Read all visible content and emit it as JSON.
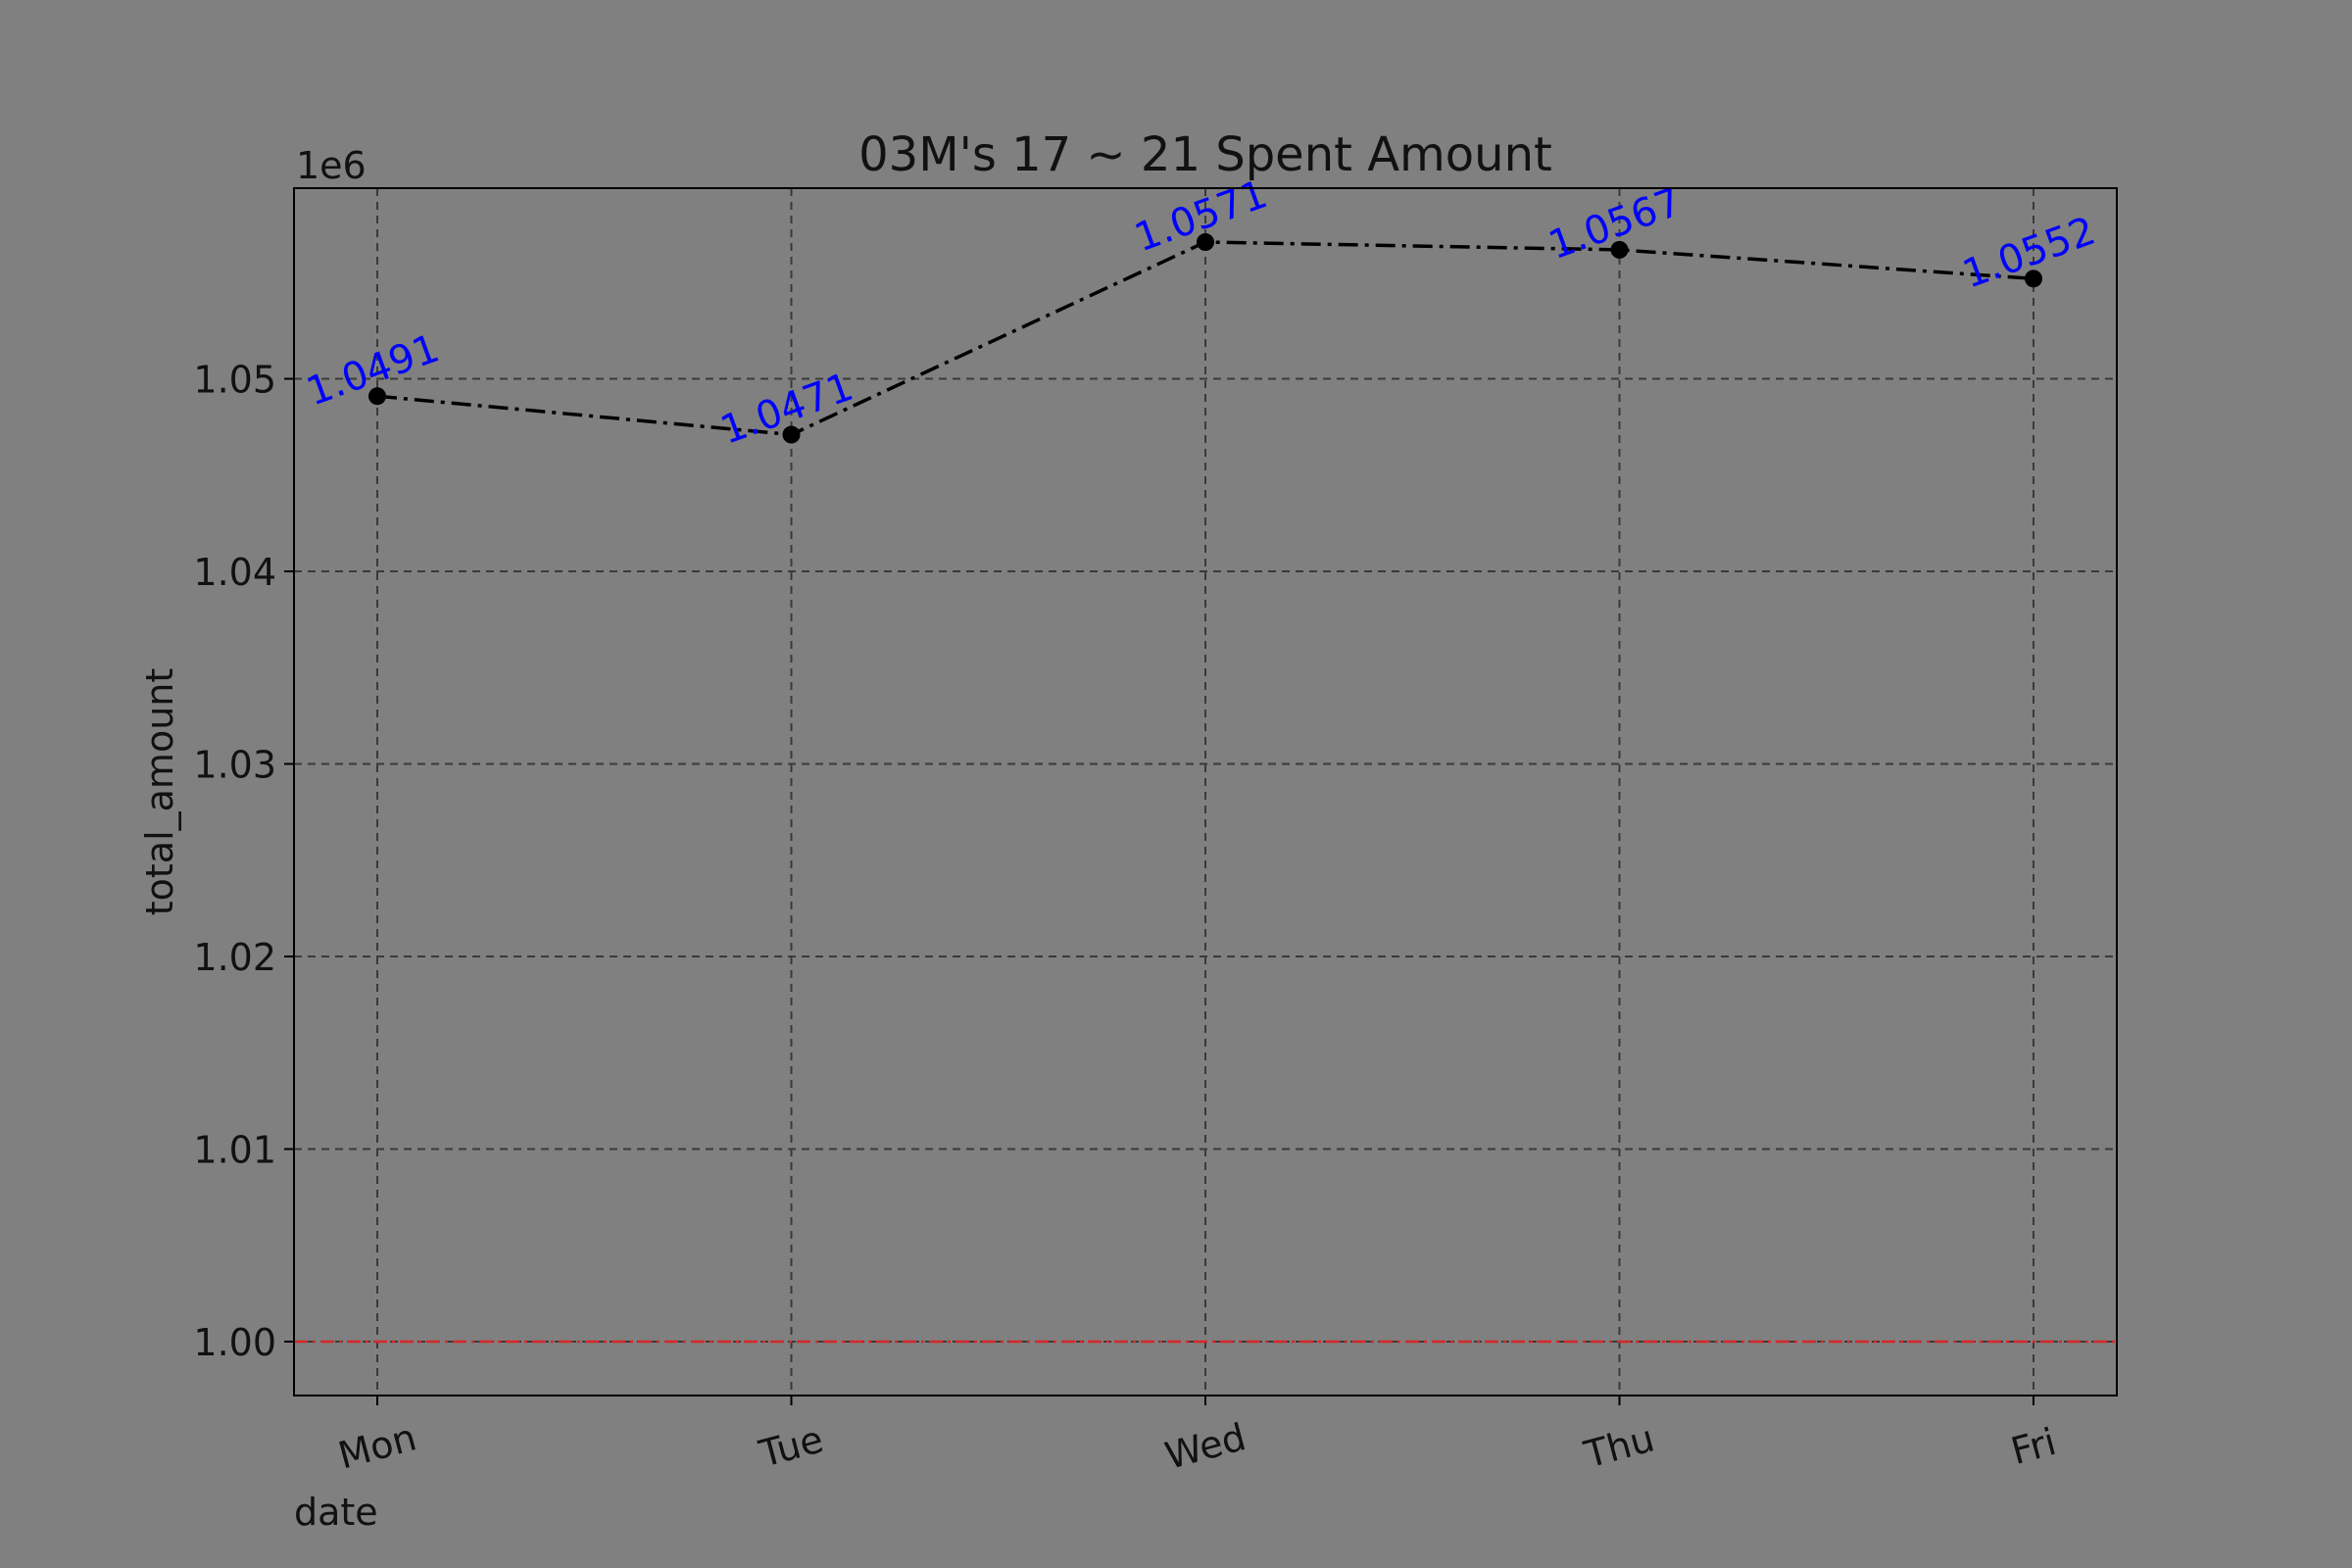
{
  "chart_data": {
    "type": "line",
    "title": "03M's 17 ~ 21 Spent Amount",
    "xlabel": "date",
    "ylabel": "total_amount",
    "offset_label": "1e6",
    "categories": [
      "Mon",
      "Tue",
      "Wed",
      "Thu",
      "Fri"
    ],
    "series": [
      {
        "values": [
          1049100,
          1047100,
          1057100,
          1056700,
          1055200
        ],
        "data_labels": [
          "1.0491",
          "1.0471",
          "1.0571",
          "1.0567",
          "1.0552"
        ],
        "color": "#000000",
        "line_style": "dash-dot",
        "marker": "circle"
      }
    ],
    "yticks": [
      1000000,
      1010000,
      1020000,
      1030000,
      1040000,
      1050000
    ],
    "ytick_labels": [
      "1.00",
      "1.01",
      "1.02",
      "1.03",
      "1.04",
      "1.05"
    ],
    "ylim": [
      997200,
      1059900
    ],
    "reference_line": {
      "value": 1000000,
      "color": "#d62728",
      "line_style": "dash-dot"
    },
    "grid": true,
    "label_color": "#0000ff",
    "background": "#808080"
  }
}
